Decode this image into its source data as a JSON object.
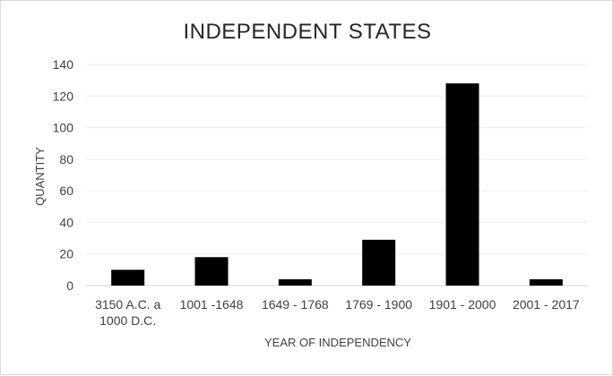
{
  "chart_data": {
    "type": "bar",
    "title": "INDEPENDENT STATES",
    "xlabel": "YEAR OF INDEPENDENCY",
    "ylabel": "QUANTITY",
    "categories": [
      [
        "3150 A.C. a",
        "1000 D.C."
      ],
      [
        "1001 -1648"
      ],
      [
        "1649 - 1768"
      ],
      [
        "1769 - 1900"
      ],
      [
        "1901 - 2000"
      ],
      [
        "2001 - 2017"
      ]
    ],
    "values": [
      10,
      18,
      4,
      29,
      128,
      4
    ],
    "ylim": [
      0,
      140
    ],
    "yticks": [
      0,
      20,
      40,
      60,
      80,
      100,
      120,
      140
    ],
    "grid": true,
    "legend": "none",
    "colors": {
      "bar": "#000000",
      "grid": "#ededed",
      "text": "#404040",
      "title": "#262626"
    }
  }
}
